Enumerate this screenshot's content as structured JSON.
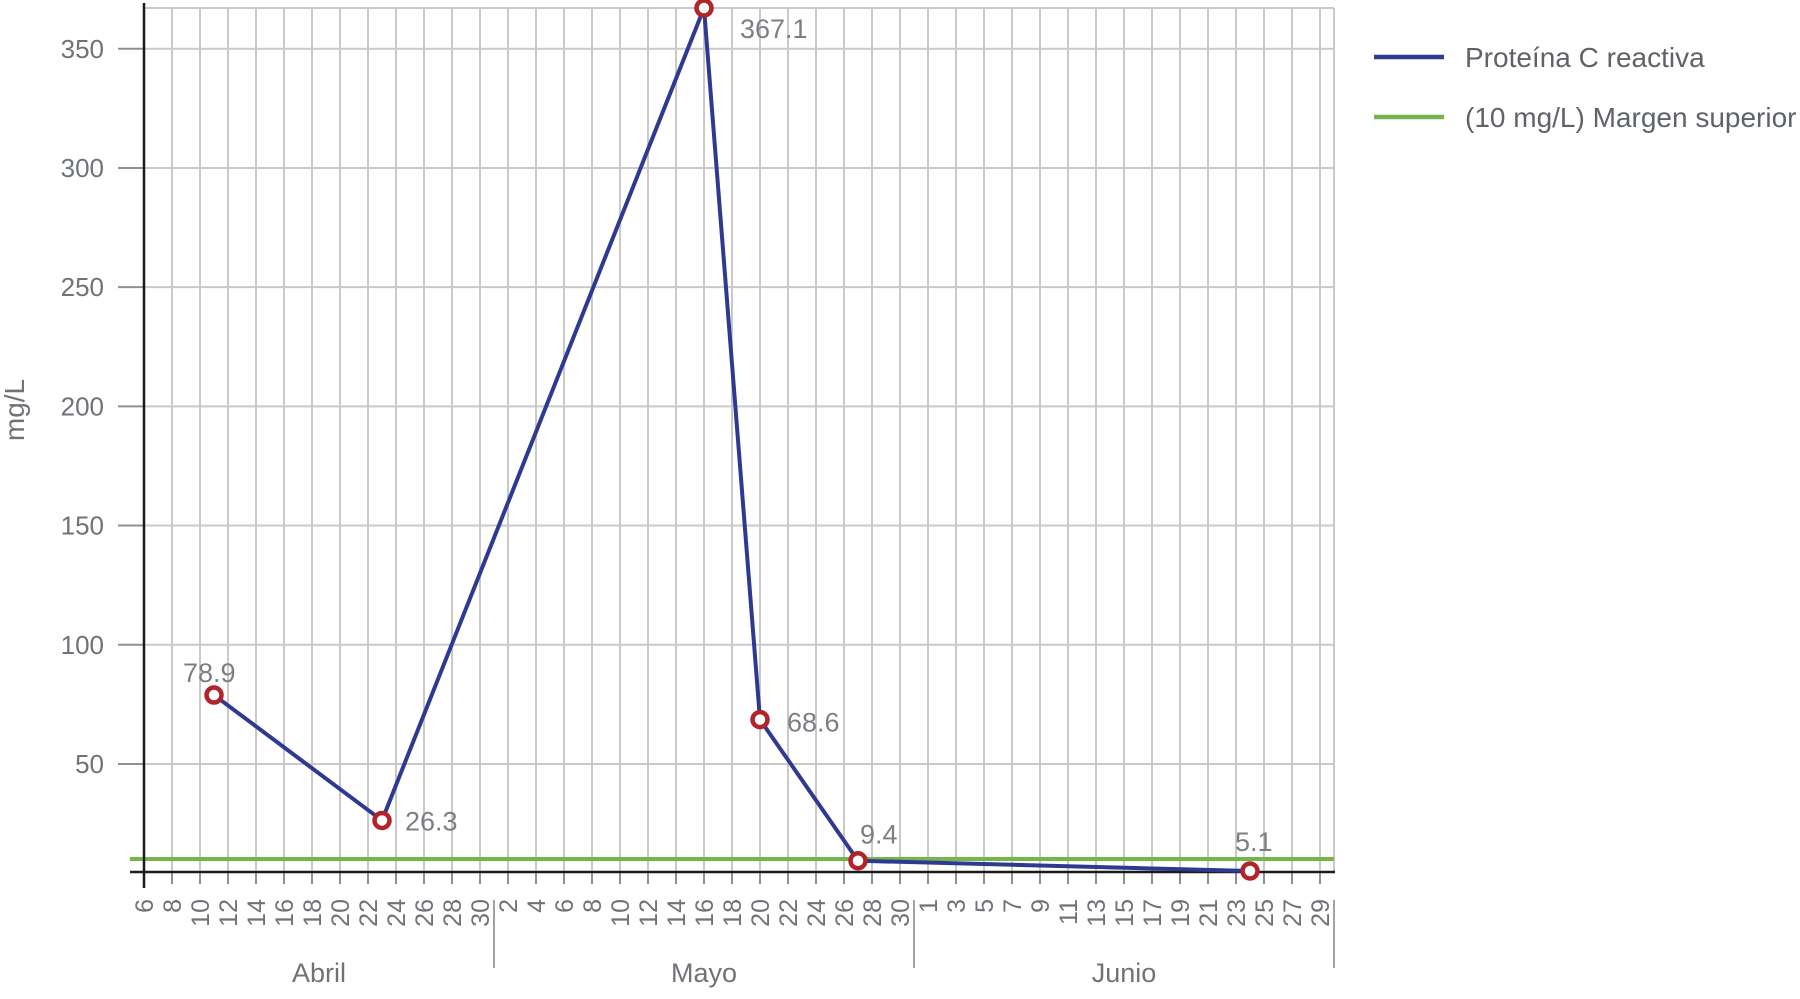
{
  "chart_data": {
    "type": "line",
    "ylabel": "mg/L",
    "yticks": [
      50,
      100,
      150,
      200,
      250,
      300,
      350
    ],
    "ylim": [
      5.1,
      367.1
    ],
    "grid": true,
    "legend_position": "top-right",
    "series": [
      {
        "name": "Proteína C reactiva",
        "color": "#2e3a92",
        "marker_color": "#b2232a",
        "points": [
          {
            "month": "Abril",
            "day": 11,
            "value": 78.9,
            "label": "78.9"
          },
          {
            "month": "Abril",
            "day": 23,
            "value": 26.3,
            "label": "26.3"
          },
          {
            "month": "Mayo",
            "day": 16,
            "value": 367.1,
            "label": "367.1"
          },
          {
            "month": "Mayo",
            "day": 20,
            "value": 68.6,
            "label": "68.6"
          },
          {
            "month": "Mayo",
            "day": 27,
            "value": 9.4,
            "label": "9.4"
          },
          {
            "month": "Junio",
            "day": 24,
            "value": 5.1,
            "label": "5.1"
          }
        ]
      }
    ],
    "threshold": {
      "label": "(10 mg/L) Margen superior",
      "value": 10,
      "color": "#74b64a"
    },
    "months": [
      {
        "name": "Abril",
        "ticks": [
          6,
          8,
          10,
          12,
          14,
          16,
          18,
          20,
          22,
          24,
          26,
          28,
          30
        ]
      },
      {
        "name": "Mayo",
        "ticks": [
          2,
          4,
          6,
          8,
          10,
          12,
          14,
          16,
          18,
          20,
          22,
          24,
          26,
          28,
          30
        ]
      },
      {
        "name": "Junio",
        "ticks": [
          1,
          3,
          5,
          7,
          9,
          11,
          13,
          15,
          17,
          19,
          21,
          23,
          25,
          27,
          29
        ]
      }
    ],
    "legend": [
      {
        "label": "Proteína C reactiva",
        "color": "#2e3a92"
      },
      {
        "label": "(10 mg/L) Margen superior",
        "color": "#74b64a"
      }
    ],
    "colors": {
      "gridline": "#c9c9c9",
      "separator": "#a3a3a3",
      "tick": "#8d9094",
      "axis": "#1a1a1a",
      "text": "#6f7377"
    }
  }
}
